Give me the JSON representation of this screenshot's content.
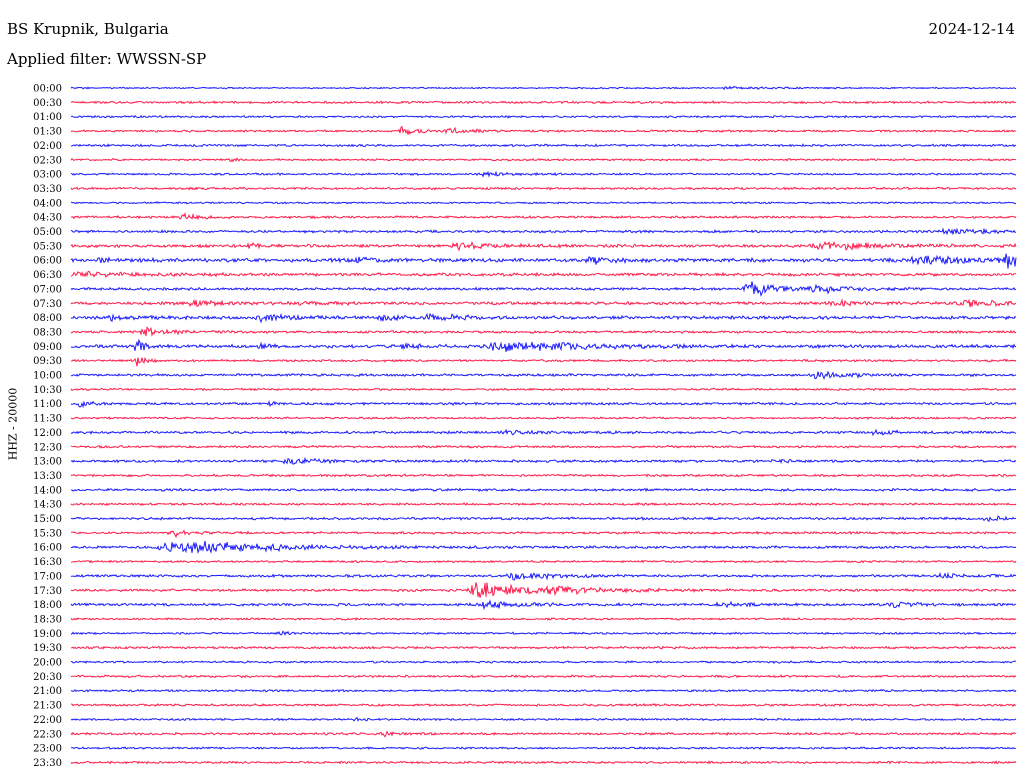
{
  "header": {
    "station": "BS Krupnik, Bulgaria",
    "date": "2024-12-14",
    "filter": "Applied filter: WWSSN-SP"
  },
  "chart_data": {
    "type": "line",
    "ylabel": "HHZ - 20000",
    "trace_colors": [
      "#1a1aff",
      "#ff1a4a"
    ],
    "x_range_minutes": [
      0,
      30
    ],
    "rows": [
      {
        "label": "00:00",
        "noise": 0.6,
        "events": [
          [
            70,
            0.8,
            4
          ]
        ]
      },
      {
        "label": "00:30",
        "noise": 0.9,
        "events": []
      },
      {
        "label": "01:00",
        "noise": 0.8,
        "events": []
      },
      {
        "label": "01:30",
        "noise": 0.8,
        "events": [
          [
            35,
            3.5,
            1.5
          ],
          [
            40,
            2.5,
            2
          ]
        ]
      },
      {
        "label": "02:00",
        "noise": 0.9,
        "events": []
      },
      {
        "label": "02:30",
        "noise": 0.8,
        "events": [
          [
            17,
            1.5,
            1
          ]
        ]
      },
      {
        "label": "03:00",
        "noise": 0.8,
        "events": [
          [
            44,
            1,
            5
          ]
        ]
      },
      {
        "label": "03:30",
        "noise": 0.9,
        "events": []
      },
      {
        "label": "04:00",
        "noise": 0.7,
        "events": []
      },
      {
        "label": "04:30",
        "noise": 0.9,
        "events": [
          [
            12,
            2.5,
            2
          ]
        ]
      },
      {
        "label": "05:00",
        "noise": 1.0,
        "events": [
          [
            93,
            2,
            5
          ]
        ]
      },
      {
        "label": "05:30",
        "noise": 1.2,
        "events": [
          [
            19,
            1.5,
            2
          ],
          [
            41,
            2.5,
            4
          ],
          [
            80,
            3,
            6
          ]
        ]
      },
      {
        "label": "06:00",
        "noise": 1.5,
        "events": [
          [
            3,
            2,
            1
          ],
          [
            30,
            2,
            2
          ],
          [
            55,
            2.5,
            2
          ],
          [
            90,
            3,
            6
          ],
          [
            99,
            6,
            1.5
          ]
        ]
      },
      {
        "label": "06:30",
        "noise": 1.2,
        "events": [
          [
            1,
            2.5,
            4
          ]
        ]
      },
      {
        "label": "07:00",
        "noise": 1.0,
        "events": [
          [
            72,
            6,
            3
          ],
          [
            79,
            3,
            3
          ]
        ]
      },
      {
        "label": "07:30",
        "noise": 1.2,
        "events": [
          [
            13,
            2,
            3
          ],
          [
            24,
            2,
            2
          ],
          [
            81,
            2,
            3
          ],
          [
            95,
            3,
            5
          ]
        ]
      },
      {
        "label": "08:00",
        "noise": 1.3,
        "events": [
          [
            4,
            2.5,
            1.5
          ],
          [
            20,
            3,
            2
          ],
          [
            33,
            2,
            2
          ],
          [
            38,
            2.5,
            3
          ]
        ]
      },
      {
        "label": "08:30",
        "noise": 1.0,
        "events": [
          [
            8,
            3,
            2.5
          ]
        ]
      },
      {
        "label": "09:00",
        "noise": 1.3,
        "events": [
          [
            7,
            6,
            1
          ],
          [
            20,
            2,
            1
          ],
          [
            35,
            2,
            2
          ],
          [
            46,
            4,
            8
          ]
        ]
      },
      {
        "label": "09:30",
        "noise": 0.9,
        "events": [
          [
            7,
            4,
            0.8
          ]
        ]
      },
      {
        "label": "10:00",
        "noise": 1.0,
        "events": [
          [
            79,
            3,
            3
          ]
        ]
      },
      {
        "label": "10:30",
        "noise": 0.8,
        "events": []
      },
      {
        "label": "11:00",
        "noise": 1.0,
        "events": [
          [
            1,
            3,
            1
          ],
          [
            21,
            2,
            1
          ]
        ]
      },
      {
        "label": "11:30",
        "noise": 0.8,
        "events": []
      },
      {
        "label": "12:00",
        "noise": 1.0,
        "events": [
          [
            46,
            1.5,
            3
          ],
          [
            85,
            1.5,
            2
          ]
        ]
      },
      {
        "label": "12:30",
        "noise": 0.9,
        "events": []
      },
      {
        "label": "13:00",
        "noise": 1.0,
        "events": [
          [
            23,
            3,
            3
          ],
          [
            75,
            2,
            1
          ]
        ]
      },
      {
        "label": "13:30",
        "noise": 0.9,
        "events": []
      },
      {
        "label": "14:00",
        "noise": 1.0,
        "events": []
      },
      {
        "label": "14:30",
        "noise": 0.9,
        "events": []
      },
      {
        "label": "15:00",
        "noise": 1.0,
        "events": [
          [
            97,
            2,
            2
          ]
        ]
      },
      {
        "label": "15:30",
        "noise": 0.9,
        "events": [
          [
            11,
            2,
            3
          ]
        ]
      },
      {
        "label": "16:00",
        "noise": 1.0,
        "events": [
          [
            12,
            5,
            10
          ]
        ]
      },
      {
        "label": "16:30",
        "noise": 0.8,
        "events": []
      },
      {
        "label": "17:00",
        "noise": 1.0,
        "events": [
          [
            47,
            3,
            4
          ],
          [
            92,
            1.5,
            3
          ]
        ]
      },
      {
        "label": "17:30",
        "noise": 1.0,
        "events": [
          [
            43,
            7,
            4
          ],
          [
            51,
            3,
            5
          ]
        ]
      },
      {
        "label": "18:00",
        "noise": 1.0,
        "events": [
          [
            44,
            3,
            4
          ],
          [
            69,
            2,
            3
          ],
          [
            87,
            2,
            3
          ]
        ]
      },
      {
        "label": "18:30",
        "noise": 0.8,
        "events": []
      },
      {
        "label": "19:00",
        "noise": 0.8,
        "events": [
          [
            22,
            2,
            1
          ]
        ]
      },
      {
        "label": "19:30",
        "noise": 0.9,
        "events": []
      },
      {
        "label": "20:00",
        "noise": 0.8,
        "events": []
      },
      {
        "label": "20:30",
        "noise": 0.9,
        "events": []
      },
      {
        "label": "21:00",
        "noise": 0.8,
        "events": []
      },
      {
        "label": "21:30",
        "noise": 0.9,
        "events": []
      },
      {
        "label": "22:00",
        "noise": 0.8,
        "events": [
          [
            30,
            1.5,
            1
          ]
        ]
      },
      {
        "label": "22:30",
        "noise": 0.9,
        "events": [
          [
            33,
            2,
            1
          ]
        ]
      },
      {
        "label": "23:00",
        "noise": 0.8,
        "events": []
      },
      {
        "label": "23:30",
        "noise": 0.9,
        "events": []
      }
    ]
  }
}
